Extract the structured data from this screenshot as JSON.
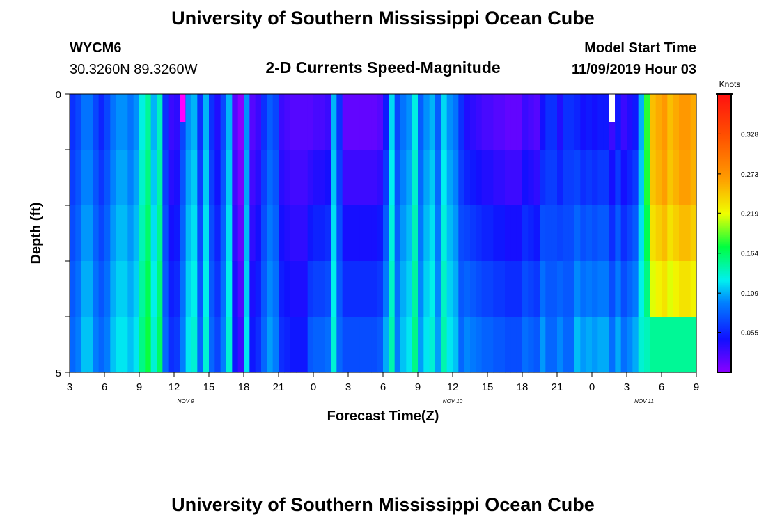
{
  "header": {
    "title": "University of Southern Mississippi Ocean Cube",
    "station_id": "WYCM6",
    "coordinates": "30.3260N 89.3260W",
    "plot_title": "2-D Currents Speed-Magnitude",
    "model_start_label": "Model Start Time",
    "model_start_value": "11/09/2019 Hour 03"
  },
  "footer": {
    "title": "University of Southern Mississippi Ocean Cube"
  },
  "chart_data": {
    "type": "heatmap",
    "title": "2-D Currents Speed-Magnitude",
    "xlabel": "Forecast Time(Z)",
    "ylabel": "Depth (ft)",
    "x_ticks": [
      "3",
      "6",
      "9",
      "12",
      "15",
      "18",
      "21",
      "0",
      "3",
      "6",
      "9",
      "12",
      "15",
      "18",
      "21",
      "0",
      "3",
      "6",
      "9"
    ],
    "x_hours": [
      0,
      3,
      6,
      9,
      12,
      15,
      18,
      21,
      24,
      27,
      30,
      33,
      36,
      39,
      42,
      45,
      48,
      51,
      54
    ],
    "x_range_hours": [
      0,
      54
    ],
    "date_labels": [
      {
        "text": "NOV  9",
        "hour": 10
      },
      {
        "text": "NOV  10",
        "hour": 33
      },
      {
        "text": "NOV  11",
        "hour": 49.5
      }
    ],
    "y_ticks": [
      "0",
      "5"
    ],
    "y_range": [
      0,
      5
    ],
    "colorbar": {
      "unit_label": "Knots",
      "ticks": [
        "0.328",
        "0.273",
        "0.219",
        "0.164",
        "0.109",
        "0.055"
      ],
      "tick_values": [
        0.328,
        0.273,
        0.219,
        0.164,
        0.109,
        0.055
      ],
      "range": [
        0,
        0.383
      ]
    },
    "depth_layers": 5,
    "hours_per_column": 0.5,
    "column_values_surface": [
      0.06,
      0.07,
      0.09,
      0.09,
      0.07,
      0.055,
      0.07,
      0.09,
      0.1,
      0.1,
      0.09,
      0.1,
      0.13,
      0.15,
      0.11,
      0.14,
      0.06,
      0.03,
      0.035,
      0.07,
      0.1,
      0.11,
      0.06,
      0.11,
      0.06,
      0.04,
      0.07,
      0.11,
      0.02,
      0.0,
      0.1,
      0.02,
      0.03,
      0.06,
      0.08,
      0.07,
      0.03,
      0.025,
      0.02,
      0.02,
      0.02,
      0.02,
      0.025,
      0.025,
      0.03,
      0.11,
      0.06,
      0.015,
      0.015,
      0.015,
      0.015,
      0.015,
      0.015,
      0.02,
      0.05,
      0.12,
      0.07,
      0.09,
      0.1,
      0.13,
      0.08,
      0.1,
      0.11,
      0.08,
      0.12,
      0.1,
      0.09,
      0.06,
      0.04,
      0.035,
      0.03,
      0.025,
      0.025,
      0.02,
      0.02,
      0.015,
      0.015,
      0.015,
      0.03,
      0.025,
      0.02,
      0.045,
      0.06,
      0.06,
      0.04,
      0.06,
      0.06,
      0.055,
      0.045,
      0.05,
      0.045,
      0.05,
      0.05,
      0.03,
      0.05,
      0.03,
      0.04,
      0.05,
      0.11,
      0.18,
      0.25,
      0.26,
      0.27,
      0.25,
      0.26,
      0.27,
      0.27,
      0.26,
      0.25,
      0.26,
      0.26,
      0.25,
      0.28,
      0.3,
      0.28,
      0.24,
      0.27,
      0.26,
      0.29,
      0.31,
      0.31,
      0.31,
      0.32,
      0.32,
      0.31,
      0.32,
      0.33,
      0.33,
      0.33,
      0.34,
      0.33,
      0.34,
      0.33,
      0.34,
      0.33,
      0.29,
      0.29,
      0.29,
      0.27,
      0.27,
      0.25,
      0.23,
      0.21,
      0.18,
      0.13,
      0.14,
      0.13,
      0.12,
      0.12,
      0.14,
      0.14,
      0.13,
      0.14,
      0.14,
      0.14,
      0.14,
      0.14,
      0.14,
      0.14,
      0.14,
      0.14,
      0.14,
      0.14,
      0.14,
      0.14,
      0.14,
      0.14,
      0.14,
      0.14,
      0.14,
      0.14,
      0.14,
      0.14,
      0.14,
      0.14,
      0.14,
      0.14,
      0.14,
      0.14,
      0.14
    ]
  }
}
